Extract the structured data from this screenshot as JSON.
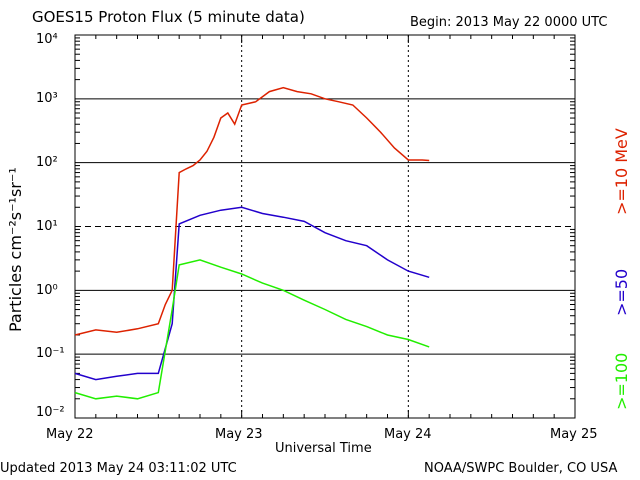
{
  "header": {
    "title": "GOES15 Proton Flux (5 minute data)",
    "begin": "Begin: 2013 May 22 0000 UTC"
  },
  "footer": {
    "updated": "Updated 2013 May 24 03:11:02 UTC",
    "source": "NOAA/SWPC Boulder, CO USA"
  },
  "colors": {
    "p10": "#dd2200",
    "p50": "#2200cc",
    "p100": "#22ee00",
    "axis": "#000000"
  },
  "chart_data": {
    "type": "line",
    "scale_y": "log",
    "ylim": [
      0.01,
      10000
    ],
    "xlim_days": [
      "2013-05-22",
      "2013-05-25"
    ],
    "xlabel": "Universal Time",
    "ylabel": "Particles cm⁻²s⁻¹sr⁻¹",
    "x_ticks": [
      "May 22",
      "May 23",
      "May 24",
      "May 25"
    ],
    "y_tick_labels": [
      "10⁻²",
      "10⁻¹",
      "10⁰",
      "10¹",
      "10²",
      "10³",
      "10⁴"
    ],
    "right_labels": [
      ">=10 MeV",
      ">=50",
      ">=100"
    ],
    "series": [
      {
        "name": ">=10 MeV",
        "color": "#dd2200",
        "points": [
          [
            "2013-05-22T00:00",
            0.2
          ],
          [
            "2013-05-22T03:00",
            0.24
          ],
          [
            "2013-05-22T06:00",
            0.22
          ],
          [
            "2013-05-22T09:00",
            0.25
          ],
          [
            "2013-05-22T12:00",
            0.3
          ],
          [
            "2013-05-22T13:00",
            0.6
          ],
          [
            "2013-05-22T14:00",
            1.0
          ],
          [
            "2013-05-22T15:00",
            70
          ],
          [
            "2013-05-22T16:00",
            80
          ],
          [
            "2013-05-22T17:00",
            90
          ],
          [
            "2013-05-22T18:00",
            110
          ],
          [
            "2013-05-22T19:00",
            150
          ],
          [
            "2013-05-22T20:00",
            250
          ],
          [
            "2013-05-22T21:00",
            500
          ],
          [
            "2013-05-22T22:00",
            600
          ],
          [
            "2013-05-22T23:00",
            400
          ],
          [
            "2013-05-23T00:00",
            800
          ],
          [
            "2013-05-23T02:00",
            900
          ],
          [
            "2013-05-23T04:00",
            1300
          ],
          [
            "2013-05-23T06:00",
            1500
          ],
          [
            "2013-05-23T08:00",
            1300
          ],
          [
            "2013-05-23T10:00",
            1200
          ],
          [
            "2013-05-23T12:00",
            1000
          ],
          [
            "2013-05-23T14:00",
            900
          ],
          [
            "2013-05-23T16:00",
            800
          ],
          [
            "2013-05-23T18:00",
            500
          ],
          [
            "2013-05-23T20:00",
            300
          ],
          [
            "2013-05-23T22:00",
            170
          ],
          [
            "2013-05-24T00:00",
            110
          ],
          [
            "2013-05-24T02:00",
            110
          ],
          [
            "2013-05-24T03:00",
            108
          ]
        ]
      },
      {
        "name": ">=50",
        "color": "#2200cc",
        "points": [
          [
            "2013-05-22T00:00",
            0.05
          ],
          [
            "2013-05-22T03:00",
            0.04
          ],
          [
            "2013-05-22T06:00",
            0.045
          ],
          [
            "2013-05-22T09:00",
            0.05
          ],
          [
            "2013-05-22T12:00",
            0.05
          ],
          [
            "2013-05-22T14:00",
            0.3
          ],
          [
            "2013-05-22T15:00",
            11
          ],
          [
            "2013-05-22T18:00",
            15
          ],
          [
            "2013-05-22T21:00",
            18
          ],
          [
            "2013-05-23T00:00",
            20
          ],
          [
            "2013-05-23T03:00",
            16
          ],
          [
            "2013-05-23T06:00",
            14
          ],
          [
            "2013-05-23T09:00",
            12
          ],
          [
            "2013-05-23T12:00",
            8
          ],
          [
            "2013-05-23T15:00",
            6
          ],
          [
            "2013-05-23T18:00",
            5
          ],
          [
            "2013-05-23T21:00",
            3
          ],
          [
            "2013-05-24T00:00",
            2
          ],
          [
            "2013-05-24T03:00",
            1.6
          ]
        ]
      },
      {
        "name": ">=100",
        "color": "#22ee00",
        "points": [
          [
            "2013-05-22T00:00",
            0.025
          ],
          [
            "2013-05-22T03:00",
            0.02
          ],
          [
            "2013-05-22T06:00",
            0.022
          ],
          [
            "2013-05-22T09:00",
            0.02
          ],
          [
            "2013-05-22T12:00",
            0.025
          ],
          [
            "2013-05-22T14:00",
            0.5
          ],
          [
            "2013-05-22T15:00",
            2.5
          ],
          [
            "2013-05-22T18:00",
            3.0
          ],
          [
            "2013-05-22T21:00",
            2.3
          ],
          [
            "2013-05-23T00:00",
            1.8
          ],
          [
            "2013-05-23T03:00",
            1.3
          ],
          [
            "2013-05-23T06:00",
            1.0
          ],
          [
            "2013-05-23T09:00",
            0.7
          ],
          [
            "2013-05-23T12:00",
            0.5
          ],
          [
            "2013-05-23T15:00",
            0.35
          ],
          [
            "2013-05-23T18:00",
            0.27
          ],
          [
            "2013-05-23T21:00",
            0.2
          ],
          [
            "2013-05-24T00:00",
            0.17
          ],
          [
            "2013-05-24T03:00",
            0.13
          ]
        ]
      }
    ]
  }
}
